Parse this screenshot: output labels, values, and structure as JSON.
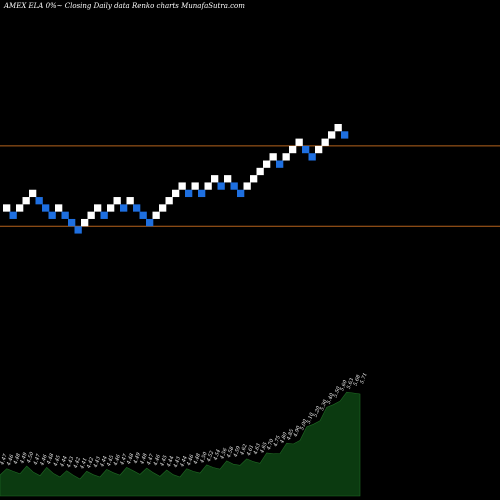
{
  "header": {
    "title": "AMEX  ELA 0%~  Closing Daily data  Renko  charts MunafaSutra.com"
  },
  "colors": {
    "background": "#000000",
    "up_brick": "#ffffff",
    "down_brick": "#1e6fe0",
    "level_line": "#b5631c",
    "volume_fill": "#0b3a10",
    "volume_edge": "#1f6a24",
    "label": "#ffffff"
  },
  "chart_data": {
    "type": "renko",
    "title": "AMEX  ELA 0%~  Closing Daily data  Renko  charts MunafaSutra.com",
    "bricks": [
      {
        "dir": "up",
        "level": 0.0
      },
      {
        "dir": "down",
        "level": -0.15
      },
      {
        "dir": "up",
        "level": 0.0
      },
      {
        "dir": "up",
        "level": 0.15
      },
      {
        "dir": "up",
        "level": 0.3
      },
      {
        "dir": "down",
        "level": 0.15
      },
      {
        "dir": "down",
        "level": 0.0
      },
      {
        "dir": "down",
        "level": -0.15
      },
      {
        "dir": "up",
        "level": 0.0
      },
      {
        "dir": "down",
        "level": -0.15
      },
      {
        "dir": "down",
        "level": -0.3
      },
      {
        "dir": "down",
        "level": -0.45
      },
      {
        "dir": "up",
        "level": -0.3
      },
      {
        "dir": "up",
        "level": -0.15
      },
      {
        "dir": "up",
        "level": 0.0
      },
      {
        "dir": "down",
        "level": -0.15
      },
      {
        "dir": "up",
        "level": 0.0
      },
      {
        "dir": "up",
        "level": 0.15
      },
      {
        "dir": "down",
        "level": 0.0
      },
      {
        "dir": "up",
        "level": 0.15
      },
      {
        "dir": "down",
        "level": 0.0
      },
      {
        "dir": "down",
        "level": -0.15
      },
      {
        "dir": "down",
        "level": -0.3
      },
      {
        "dir": "up",
        "level": -0.15
      },
      {
        "dir": "up",
        "level": 0.0
      },
      {
        "dir": "up",
        "level": 0.15
      },
      {
        "dir": "up",
        "level": 0.3
      },
      {
        "dir": "up",
        "level": 0.45
      },
      {
        "dir": "down",
        "level": 0.3
      },
      {
        "dir": "up",
        "level": 0.45
      },
      {
        "dir": "down",
        "level": 0.3
      },
      {
        "dir": "up",
        "level": 0.45
      },
      {
        "dir": "up",
        "level": 0.6
      },
      {
        "dir": "down",
        "level": 0.45
      },
      {
        "dir": "up",
        "level": 0.6
      },
      {
        "dir": "down",
        "level": 0.45
      },
      {
        "dir": "down",
        "level": 0.3
      },
      {
        "dir": "up",
        "level": 0.45
      },
      {
        "dir": "up",
        "level": 0.6
      },
      {
        "dir": "up",
        "level": 0.75
      },
      {
        "dir": "up",
        "level": 0.9
      },
      {
        "dir": "up",
        "level": 1.05
      },
      {
        "dir": "down",
        "level": 0.9
      },
      {
        "dir": "up",
        "level": 1.05
      },
      {
        "dir": "up",
        "level": 1.2
      },
      {
        "dir": "up",
        "level": 1.35
      },
      {
        "dir": "down",
        "level": 1.2
      },
      {
        "dir": "down",
        "level": 1.05
      },
      {
        "dir": "up",
        "level": 1.2
      },
      {
        "dir": "up",
        "level": 1.35
      },
      {
        "dir": "up",
        "level": 1.5
      },
      {
        "dir": "up",
        "level": 1.65
      },
      {
        "dir": "down",
        "level": 1.5
      }
    ],
    "reference_lines": [
      1.35,
      -0.3
    ],
    "volume_labels": [
      "4.47",
      "4.46",
      "4.48",
      "4.49",
      "4.50",
      "4.47",
      "4.46",
      "4.48",
      "4.45",
      "4.44",
      "4.43",
      "4.42",
      "4.41",
      "4.42",
      "4.43",
      "4.44",
      "4.45",
      "4.46",
      "4.47",
      "4.48",
      "4.49",
      "4.48",
      "4.47",
      "4.46",
      "4.45",
      "4.44",
      "4.43",
      "4.44",
      "4.46",
      "4.48",
      "4.50",
      "4.52",
      "4.54",
      "4.56",
      "4.58",
      "4.59",
      "4.62",
      "4.61",
      "4.63",
      "4.65",
      "4.70",
      "4.75",
      "4.80",
      "4.85",
      "4.90",
      "5.00",
      "5.10",
      "5.20",
      "5.30",
      "5.40",
      "5.50",
      "5.60",
      "5.63",
      "5.68",
      "5.71"
    ]
  }
}
